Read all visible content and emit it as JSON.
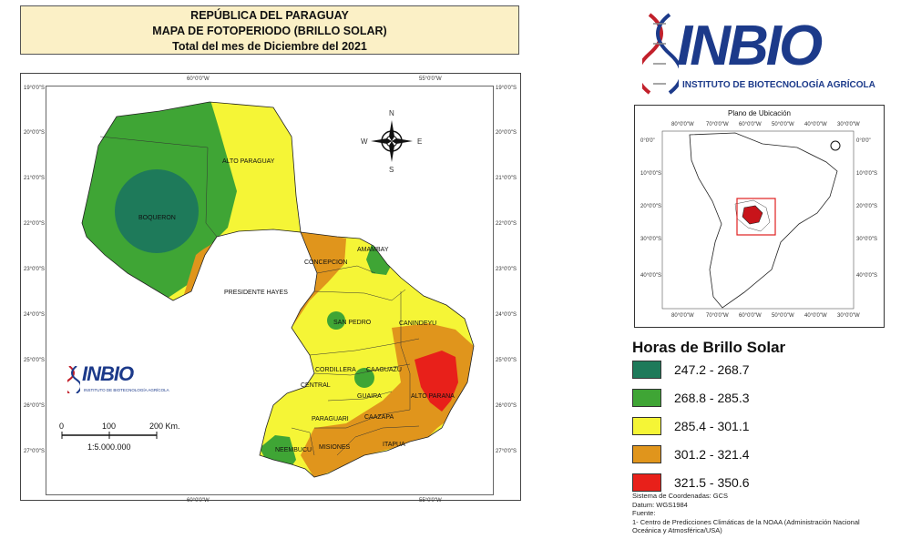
{
  "header": {
    "line1": "REPÚBLICA DEL PARAGUAY",
    "line2": "MAPA DE FOTOPERIODO (BRILLO SOLAR)",
    "line3": "Total del mes de Diciembre del 2021"
  },
  "logo": {
    "name": "INBIO",
    "subtitle": "INSTITUTO DE BIOTECNOLOGÍA AGRÍCOLA"
  },
  "map": {
    "coords": {
      "lat_left": [
        "19°0'0\"S",
        "20°0'0\"S",
        "21°0'0\"S",
        "22°0'0\"S",
        "23°0'0\"S",
        "24°0'0\"S",
        "25°0'0\"S",
        "26°0'0\"S",
        "27°0'0\"S"
      ],
      "lat_right": [
        "19°0'0\"S",
        "20°0'0\"S",
        "21°0'0\"S",
        "22°0'0\"S",
        "23°0'0\"S",
        "24°0'0\"S",
        "25°0'0\"S",
        "26°0'0\"S",
        "27°0'0\"S"
      ],
      "lon_top": [
        "60°0'0\"W",
        "55°0'0\"W"
      ],
      "lon_bottom": [
        "60°0'0\"W",
        "55°0'0\"W"
      ]
    },
    "departments": {
      "alto_paraguay": "ALTO PARAGUAY",
      "boqueron": "BOQUERON",
      "presidente_hayes": "PRESIDENTE HAYES",
      "concepcion": "CONCEPCION",
      "amambay": "AMAMBAY",
      "san_pedro": "SAN PEDRO",
      "canindeyu": "CANINDEYU",
      "cordillera": "CORDILLERA",
      "caaguazu": "CAAGUAZU",
      "central": "CENTRAL",
      "guaira": "GUAIRA",
      "alto_parana": "ALTO PARANA",
      "paraguari": "PARAGUARI",
      "caazapa": "CAAZAPA",
      "neembucu": "NEEMBUCU",
      "misiones": "MISIONES",
      "itapua": "ITAPUA"
    },
    "compass": {
      "n": "N",
      "s": "S",
      "e": "E",
      "w": "W"
    },
    "scale": {
      "t0": "0",
      "t1": "100",
      "t2": "200 Km.",
      "ratio": "1:5.000.000"
    }
  },
  "location_map": {
    "title": "Plano de Ubicación",
    "lon_labels": [
      "80°0'0\"W",
      "70°0'0\"W",
      "60°0'0\"W",
      "50°0'0\"W",
      "40°0'0\"W",
      "30°0'0\"W"
    ],
    "lat_labels": [
      "0°0'0\"",
      "10°0'0\"S",
      "20°0'0\"S",
      "30°0'0\"S",
      "40°0'0\"S"
    ]
  },
  "legend": {
    "title": "Horas de Brillo Solar",
    "items": [
      {
        "label": "247.2 - 268.7",
        "color": "#1e7a5a"
      },
      {
        "label": "268.8 - 285.3",
        "color": "#3fa535"
      },
      {
        "label": "285.4 - 301.1",
        "color": "#f5f536"
      },
      {
        "label": "301.2 - 321.4",
        "color": "#e0951c"
      },
      {
        "label": "321.5 - 350.6",
        "color": "#e8201a"
      }
    ]
  },
  "notes": {
    "line1": "Sistema de Coordenadas: GCS",
    "line2": "Datum: WGS1984",
    "line3": "Fuente:",
    "line4": "1- Centro de Predicciones Climáticas de la NOAA (Administración Nacional",
    "line5": "Oceánica y Atmosférica/USA)"
  }
}
